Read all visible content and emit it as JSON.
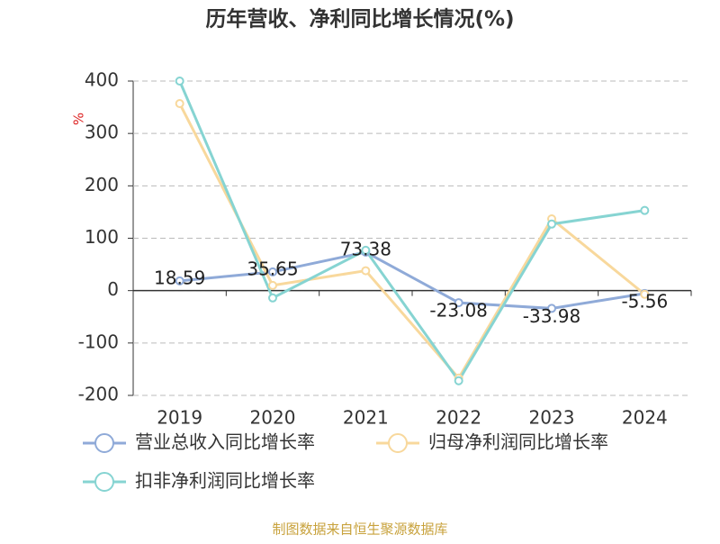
{
  "chart_data": {
    "type": "line",
    "title": "历年营收、净利同比增长情况(%)",
    "y_unit": "%",
    "categories": [
      "2019",
      "2020",
      "2021",
      "2022",
      "2023",
      "2024"
    ],
    "series": [
      {
        "name": "营业总收入同比增长率",
        "color": "#8faad8",
        "values": [
          18.59,
          35.65,
          73.38,
          -23.08,
          -33.98,
          -5.56
        ],
        "show_labels": true
      },
      {
        "name": "归母净利润同比增长率",
        "color": "#f8d89c",
        "values": [
          357,
          10,
          38,
          -167,
          137,
          -7
        ],
        "show_labels": false
      },
      {
        "name": "扣非净利润同比增长率",
        "color": "#86d4d2",
        "values": [
          400,
          -14,
          77,
          -172,
          127,
          153
        ],
        "show_labels": false
      }
    ],
    "ylim": [
      -200,
      400
    ],
    "yticks": [
      -200,
      -100,
      0,
      100,
      200,
      300,
      400
    ],
    "grid": true,
    "legend": "bottom",
    "footer": "制图数据来自恒生聚源数据库"
  }
}
